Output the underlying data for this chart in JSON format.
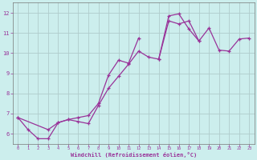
{
  "xlabel": "Windchill (Refroidissement éolien,°C)",
  "bg_color": "#cceeed",
  "grid_color": "#b0cccc",
  "line_color": "#993399",
  "xlim": [
    -0.5,
    23.5
  ],
  "ylim": [
    5.5,
    12.5
  ],
  "xticks": [
    0,
    1,
    2,
    3,
    4,
    5,
    6,
    7,
    8,
    9,
    10,
    11,
    12,
    13,
    14,
    15,
    16,
    17,
    18,
    19,
    20,
    21,
    22,
    23
  ],
  "yticks": [
    6,
    7,
    8,
    9,
    10,
    11,
    12
  ],
  "series": [
    {
      "x": [
        0,
        1,
        2,
        3,
        4,
        5,
        6,
        7,
        8,
        9,
        10,
        11,
        12
      ],
      "y": [
        6.8,
        6.2,
        5.75,
        5.75,
        6.55,
        6.7,
        6.8,
        6.9,
        7.5,
        8.9,
        9.65,
        9.5,
        10.75
      ]
    },
    {
      "x": [
        0,
        3,
        4,
        5,
        6,
        7,
        8,
        9,
        10,
        11,
        12,
        13,
        14,
        15,
        16,
        17,
        18,
        19,
        20,
        21,
        22,
        23
      ],
      "y": [
        6.8,
        6.2,
        6.55,
        6.7,
        6.6,
        6.5,
        7.4,
        8.25,
        8.85,
        9.45,
        10.1,
        9.8,
        9.7,
        11.6,
        11.45,
        11.6,
        10.6,
        11.25,
        10.15,
        10.1,
        10.7,
        10.75
      ]
    },
    {
      "x": [
        14,
        15,
        16,
        17,
        18
      ],
      "y": [
        9.7,
        11.85,
        11.95,
        11.2,
        10.6
      ]
    }
  ]
}
